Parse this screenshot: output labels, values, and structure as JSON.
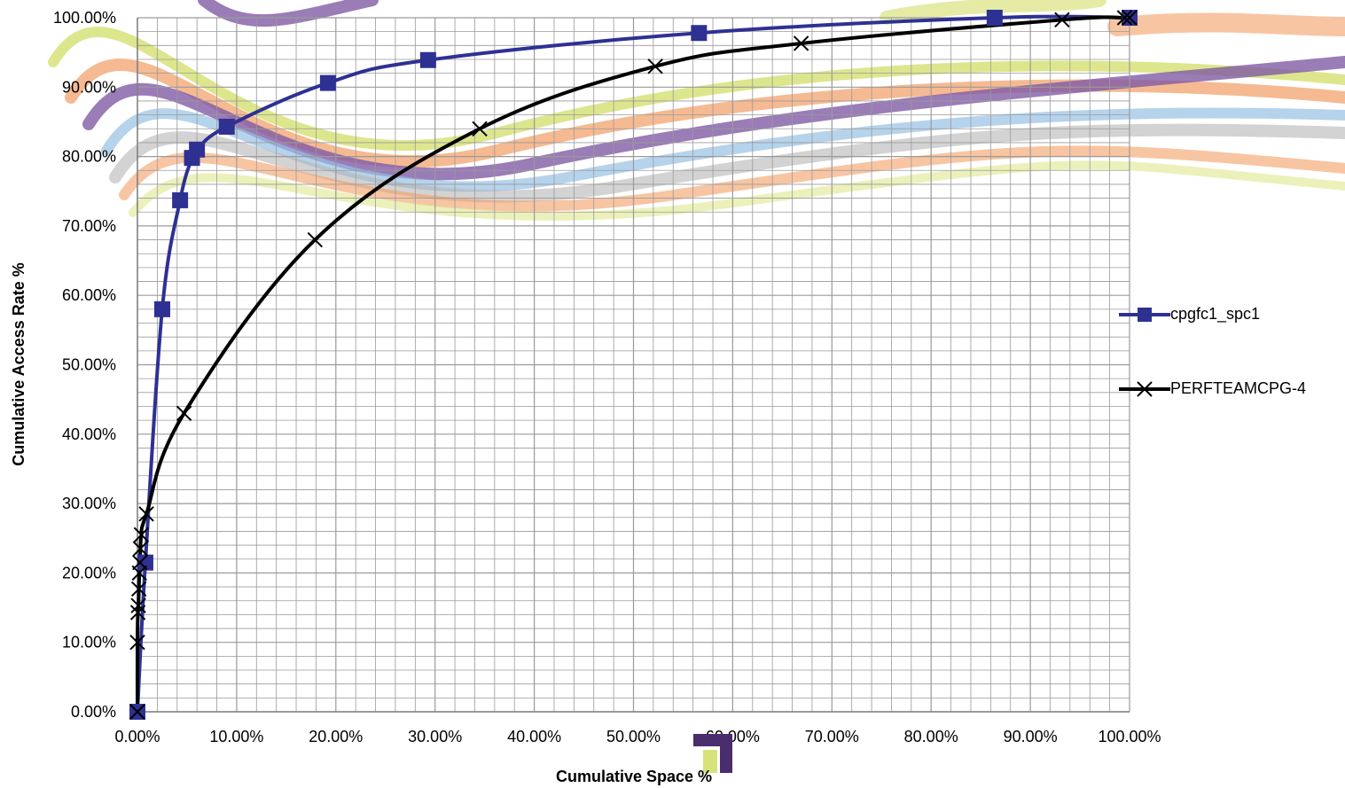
{
  "chart_data": {
    "type": "line",
    "xlabel": "Cumulative Space %",
    "ylabel": "Cumulative Access Rate %",
    "xlim": [
      0,
      100
    ],
    "ylim": [
      0,
      100
    ],
    "x_ticks": [
      "0.00%",
      "10.00%",
      "20.00%",
      "30.00%",
      "40.00%",
      "50.00%",
      "60.00%",
      "70.00%",
      "80.00%",
      "90.00%",
      "100.00%"
    ],
    "y_ticks": [
      "0.00%",
      "10.00%",
      "20.00%",
      "30.00%",
      "40.00%",
      "50.00%",
      "60.00%",
      "70.00%",
      "80.00%",
      "90.00%",
      "100.00%"
    ],
    "grid": true,
    "legend_position": "right",
    "series": [
      {
        "name": "cpgfc1_spc1",
        "color": "#2E3192",
        "marker": "square",
        "points": [
          [
            0,
            0
          ],
          [
            0.8,
            21.5
          ],
          [
            2.5,
            58
          ],
          [
            4.3,
            73.7
          ],
          [
            5.5,
            79.8
          ],
          [
            6.0,
            81.0
          ],
          [
            9.0,
            84.3
          ],
          [
            19.2,
            90.6
          ],
          [
            29.3,
            93.9
          ],
          [
            56.6,
            97.8
          ],
          [
            86.4,
            100
          ],
          [
            100,
            100
          ]
        ]
      },
      {
        "name": "PERFTEAMCPG-4",
        "color": "#000000",
        "marker": "x",
        "points": [
          [
            0,
            0
          ],
          [
            0,
            10
          ],
          [
            0.05,
            14.3
          ],
          [
            0.1,
            15.3
          ],
          [
            0.15,
            17.7
          ],
          [
            0.2,
            20
          ],
          [
            0.25,
            21.5
          ],
          [
            0.3,
            23.5
          ],
          [
            0.4,
            25.5
          ],
          [
            0.9,
            28.5
          ],
          [
            4.7,
            43
          ],
          [
            17.9,
            68
          ],
          [
            34.5,
            84
          ],
          [
            52.2,
            93
          ],
          [
            66.9,
            96.3
          ],
          [
            93.2,
            99.7
          ],
          [
            99.5,
            100
          ],
          [
            100,
            100
          ]
        ]
      }
    ]
  }
}
